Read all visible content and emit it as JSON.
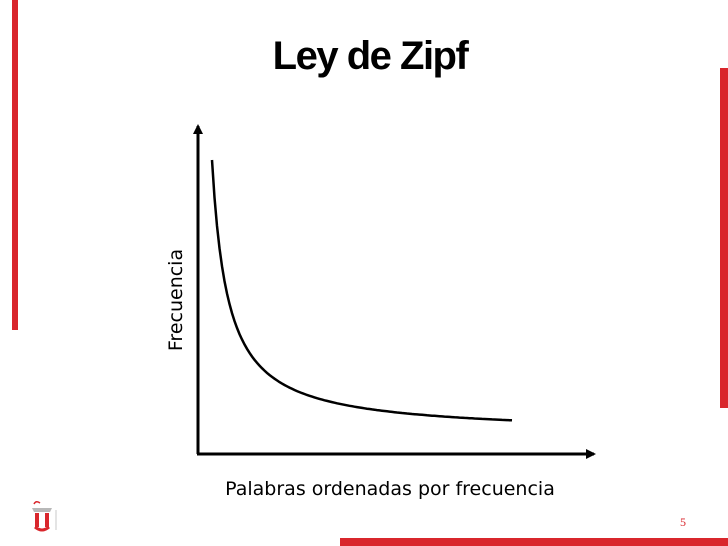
{
  "slide": {
    "title": "Ley de Zipf",
    "page_number": "5",
    "accent_color": "#d9262c"
  },
  "logo": {
    "icon": "university-logo-icon"
  },
  "chart_data": {
    "type": "line",
    "title": "Ley de Zipf",
    "xlabel": "Palabras ordenadas por frecuencia",
    "ylabel": "Frecuencia",
    "x_ticks": false,
    "y_ticks": false,
    "grid": false,
    "axes_with_arrows": true,
    "series": [
      {
        "points": [
          {
            "x": 1,
            "y": 1.0
          },
          {
            "x": 2,
            "y": 0.5
          },
          {
            "x": 3,
            "y": 0.333
          },
          {
            "x": 4,
            "y": 0.25
          },
          {
            "x": 5,
            "y": 0.2
          },
          {
            "x": 6,
            "y": 0.167
          },
          {
            "x": 7,
            "y": 0.143
          },
          {
            "x": 8,
            "y": 0.125
          },
          {
            "x": 9,
            "y": 0.111
          },
          {
            "x": 10,
            "y": 0.1
          },
          {
            "x": 11,
            "y": 0.091
          },
          {
            "x": 12,
            "y": 0.083
          },
          {
            "x": 13,
            "y": 0.077
          },
          {
            "x": 14,
            "y": 0.071
          },
          {
            "x": 15,
            "y": 0.067
          },
          {
            "x": 16,
            "y": 0.0625
          },
          {
            "x": 17,
            "y": 0.059
          },
          {
            "x": 18,
            "y": 0.056
          },
          {
            "x": 19,
            "y": 0.053
          },
          {
            "x": 20,
            "y": 0.05
          }
        ]
      }
    ]
  }
}
